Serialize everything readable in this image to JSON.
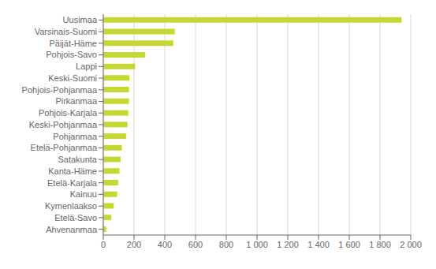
{
  "chart_data": {
    "type": "bar",
    "orientation": "horizontal",
    "categories": [
      "Ahvenanmaa",
      "Etelä-Savo",
      "Kymenlaakso",
      "Kainuu",
      "Etelä-Karjala",
      "Kanta-Häme",
      "Satakunta",
      "Etelä-Pohjanmaa",
      "Pohjanmaa",
      "Keski-Pohjanmaa",
      "Pohjois-Karjala",
      "Pirkanmaa",
      "Pohjois-Pohjanmaa",
      "Keski-Suomi",
      "Lappi",
      "Pohjois-Savo",
      "Päijät-Häme",
      "Varsinais-Suomi",
      "Uusimaa"
    ],
    "values": [
      18,
      52,
      68,
      90,
      97,
      105,
      112,
      120,
      148,
      157,
      162,
      167,
      167,
      170,
      207,
      272,
      455,
      465,
      1940
    ],
    "color": "#c5d832",
    "xlim": [
      0,
      2000
    ],
    "xticks": [
      0,
      200,
      400,
      600,
      800,
      {
        "value": 1000,
        "label": "1 000"
      },
      {
        "value": 1200,
        "label": "1 200"
      },
      {
        "value": 1400,
        "label": "1 400"
      },
      {
        "value": 1600,
        "label": "1 600"
      },
      {
        "value": 1800,
        "label": "1 800"
      },
      {
        "value": 2000,
        "label": "2 000"
      }
    ],
    "grid": true
  }
}
